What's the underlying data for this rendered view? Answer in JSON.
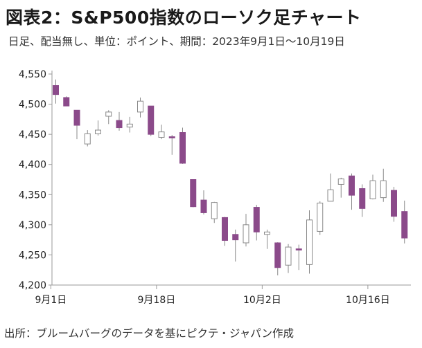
{
  "title": "図表2：S&P500指数のローソク足チャート",
  "subtitle": "日足、配当無し、単位：ポイント、期間：2023年9月1日～10月19日",
  "source": "出所：ブルームバーグのデータを基にピクテ・ジャパン作成",
  "chart_data": {
    "type": "candlestick",
    "x_ticks": [
      {
        "label": "9月1日",
        "day_index": 0
      },
      {
        "label": "9月18日",
        "day_index": 10
      },
      {
        "label": "10月2日",
        "day_index": 20
      },
      {
        "label": "10月16日",
        "day_index": 30
      }
    ],
    "y_ticks": [
      "4,550",
      "4,500",
      "4,450",
      "4,400",
      "4,350",
      "4,300",
      "4,250",
      "4,200"
    ],
    "ylim": [
      4200,
      4550
    ],
    "colors": {
      "up": "#ffffff",
      "up_border": "#888888",
      "down": "#8b4a8a",
      "wick": "#888888",
      "axis": "#9a9a9a"
    },
    "candles": [
      {
        "date": "9/1",
        "open": 4531,
        "high": 4541,
        "low": 4501,
        "close": 4516
      },
      {
        "date": "9/5",
        "open": 4511,
        "high": 4513,
        "low": 4497,
        "close": 4497
      },
      {
        "date": "9/6",
        "open": 4490,
        "high": 4490,
        "low": 4442,
        "close": 4465
      },
      {
        "date": "9/7",
        "open": 4434,
        "high": 4457,
        "low": 4430,
        "close": 4451
      },
      {
        "date": "9/8",
        "open": 4451,
        "high": 4473,
        "low": 4448,
        "close": 4457
      },
      {
        "date": "9/11",
        "open": 4480,
        "high": 4490,
        "low": 4467,
        "close": 4487
      },
      {
        "date": "9/12",
        "open": 4473,
        "high": 4487,
        "low": 4456,
        "close": 4461
      },
      {
        "date": "9/13",
        "open": 4462,
        "high": 4479,
        "low": 4453,
        "close": 4467
      },
      {
        "date": "9/14",
        "open": 4487,
        "high": 4511,
        "low": 4478,
        "close": 4505
      },
      {
        "date": "9/15",
        "open": 4497,
        "high": 4497,
        "low": 4447,
        "close": 4450
      },
      {
        "date": "9/18",
        "open": 4445,
        "high": 4466,
        "low": 4442,
        "close": 4454
      },
      {
        "date": "9/19",
        "open": 4446,
        "high": 4449,
        "low": 4416,
        "close": 4444
      },
      {
        "date": "9/20",
        "open": 4453,
        "high": 4461,
        "low": 4401,
        "close": 4402
      },
      {
        "date": "9/21",
        "open": 4375,
        "high": 4375,
        "low": 4329,
        "close": 4330
      },
      {
        "date": "9/22",
        "open": 4341,
        "high": 4357,
        "low": 4317,
        "close": 4320
      },
      {
        "date": "9/25",
        "open": 4310,
        "high": 4338,
        "low": 4303,
        "close": 4337
      },
      {
        "date": "9/26",
        "open": 4312,
        "high": 4313,
        "low": 4265,
        "close": 4274
      },
      {
        "date": "9/27",
        "open": 4284,
        "high": 4292,
        "low": 4239,
        "close": 4275
      },
      {
        "date": "9/28",
        "open": 4270,
        "high": 4318,
        "low": 4264,
        "close": 4300
      },
      {
        "date": "9/29",
        "open": 4329,
        "high": 4333,
        "low": 4274,
        "close": 4288
      },
      {
        "date": "10/2",
        "open": 4284,
        "high": 4292,
        "low": 4260,
        "close": 4288
      },
      {
        "date": "10/3",
        "open": 4270,
        "high": 4271,
        "low": 4216,
        "close": 4229
      },
      {
        "date": "10/4",
        "open": 4233,
        "high": 4268,
        "low": 4220,
        "close": 4263
      },
      {
        "date": "10/5",
        "open": 4260,
        "high": 4267,
        "low": 4225,
        "close": 4258
      },
      {
        "date": "10/6",
        "open": 4234,
        "high": 4324,
        "low": 4219,
        "close": 4308
      },
      {
        "date": "10/9",
        "open": 4289,
        "high": 4339,
        "low": 4283,
        "close": 4336
      },
      {
        "date": "10/10",
        "open": 4339,
        "high": 4385,
        "low": 4339,
        "close": 4358
      },
      {
        "date": "10/11",
        "open": 4367,
        "high": 4378,
        "low": 4345,
        "close": 4376
      },
      {
        "date": "10/12",
        "open": 4381,
        "high": 4385,
        "low": 4325,
        "close": 4349
      },
      {
        "date": "10/13",
        "open": 4360,
        "high": 4367,
        "low": 4313,
        "close": 4327
      },
      {
        "date": "10/16",
        "open": 4343,
        "high": 4383,
        "low": 4342,
        "close": 4373
      },
      {
        "date": "10/17",
        "open": 4345,
        "high": 4393,
        "low": 4338,
        "close": 4373
      },
      {
        "date": "10/18",
        "open": 4357,
        "high": 4363,
        "low": 4305,
        "close": 4314
      },
      {
        "date": "10/19",
        "open": 4322,
        "high": 4340,
        "low": 4269,
        "close": 4278
      }
    ]
  }
}
